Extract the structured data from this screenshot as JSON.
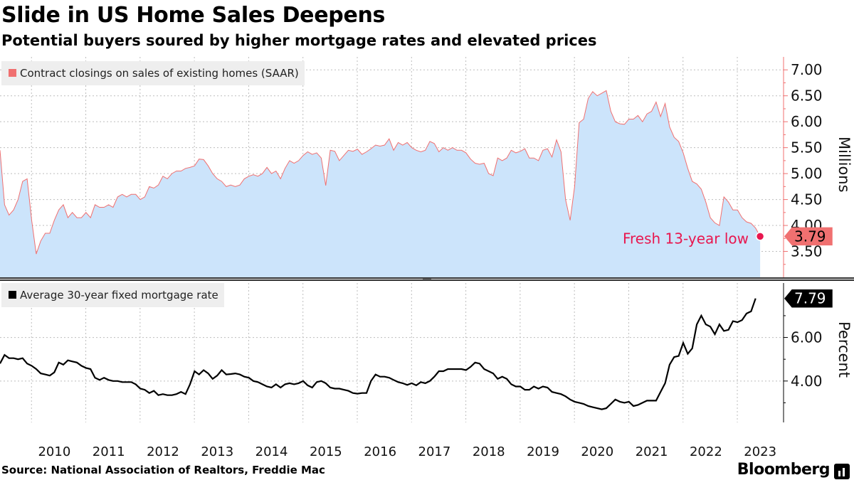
{
  "header": {
    "title": "Slide in US Home Sales Deepens",
    "subtitle": "Potential buyers soured by higher mortgage rates and elevated prices"
  },
  "footer": {
    "source": "Source: National Association of Realtors, Freddie Mac",
    "brand": "Bloomberg"
  },
  "chart_data": [
    {
      "type": "area",
      "series_name": "Contract closings on sales of existing homes (SAAR)",
      "unit": "Millions",
      "color_fill": "#cce4fb",
      "color_line": "#f07070",
      "ylim": [
        3.0,
        7.25
      ],
      "yticks": [
        3.5,
        4.0,
        4.5,
        5.0,
        5.5,
        6.0,
        6.5,
        7.0
      ],
      "ytick_labels": [
        "3.50",
        "4.00",
        "4.50",
        "5.00",
        "5.50",
        "6.00",
        "6.50",
        "7.00"
      ],
      "x_start": 2009.42,
      "x_step_months": 1,
      "values": [
        5.45,
        4.4,
        4.2,
        4.3,
        4.5,
        4.85,
        4.9,
        4.1,
        3.45,
        3.7,
        3.85,
        3.85,
        4.1,
        4.3,
        4.4,
        4.15,
        4.25,
        4.15,
        4.15,
        4.25,
        4.15,
        4.4,
        4.35,
        4.35,
        4.4,
        4.35,
        4.55,
        4.6,
        4.55,
        4.6,
        4.6,
        4.5,
        4.55,
        4.75,
        4.72,
        4.78,
        4.95,
        4.9,
        5.0,
        5.05,
        5.05,
        5.1,
        5.12,
        5.15,
        5.28,
        5.27,
        5.15,
        5.0,
        4.9,
        4.85,
        4.75,
        4.78,
        4.75,
        4.78,
        4.9,
        4.95,
        4.98,
        4.95,
        5.0,
        5.12,
        5.0,
        5.05,
        4.9,
        5.1,
        5.25,
        5.2,
        5.25,
        5.35,
        5.42,
        5.37,
        5.4,
        5.3,
        4.77,
        5.45,
        5.43,
        5.25,
        5.35,
        5.45,
        5.43,
        5.47,
        5.37,
        5.42,
        5.48,
        5.55,
        5.53,
        5.55,
        5.67,
        5.45,
        5.6,
        5.55,
        5.6,
        5.5,
        5.45,
        5.42,
        5.45,
        5.62,
        5.58,
        5.42,
        5.5,
        5.45,
        5.5,
        5.45,
        5.45,
        5.4,
        5.28,
        5.2,
        5.18,
        5.2,
        5.0,
        4.96,
        5.3,
        5.25,
        5.3,
        5.45,
        5.4,
        5.43,
        5.48,
        5.3,
        5.3,
        5.25,
        5.45,
        5.48,
        5.32,
        5.65,
        5.42,
        4.5,
        4.1,
        4.75,
        5.98,
        6.05,
        6.45,
        6.58,
        6.5,
        6.55,
        6.6,
        6.2,
        6.0,
        5.96,
        5.95,
        6.05,
        6.05,
        6.12,
        6.0,
        6.15,
        6.2,
        6.38,
        6.1,
        6.35,
        5.9,
        5.7,
        5.62,
        5.4,
        5.1,
        4.85,
        4.8,
        4.7,
        4.45,
        4.15,
        4.05,
        4.0,
        4.55,
        4.45,
        4.3,
        4.3,
        4.15,
        4.07,
        4.04,
        3.95,
        3.79
      ],
      "last_value_label": "3.79",
      "annotation": "Fresh 13-year low"
    },
    {
      "type": "line",
      "series_name": "Average 30-year fixed mortgage rate",
      "unit": "Percent",
      "color_line": "#000000",
      "ylim": [
        2.1,
        8.5
      ],
      "yticks": [
        4.0,
        6.0
      ],
      "ytick_labels": [
        "4.00",
        "6.00"
      ],
      "x_start": 2009.42,
      "x_step_months": 1,
      "values": [
        4.8,
        5.2,
        5.05,
        5.05,
        5.0,
        5.05,
        4.8,
        4.7,
        4.55,
        4.35,
        4.3,
        4.25,
        4.4,
        4.85,
        4.75,
        4.95,
        4.9,
        4.85,
        4.7,
        4.6,
        4.55,
        4.15,
        4.05,
        4.15,
        4.05,
        4.0,
        4.0,
        3.95,
        3.95,
        3.95,
        3.85,
        3.65,
        3.6,
        3.45,
        3.55,
        3.35,
        3.4,
        3.35,
        3.35,
        3.4,
        3.5,
        3.4,
        3.85,
        4.45,
        4.3,
        4.5,
        4.35,
        4.1,
        4.25,
        4.5,
        4.3,
        4.32,
        4.35,
        4.3,
        4.2,
        4.15,
        4.0,
        3.95,
        3.85,
        3.75,
        3.7,
        3.85,
        3.7,
        3.85,
        3.9,
        3.85,
        3.9,
        4.0,
        3.8,
        3.7,
        3.95,
        4.0,
        3.9,
        3.7,
        3.65,
        3.65,
        3.6,
        3.55,
        3.45,
        3.42,
        3.45,
        3.45,
        4.0,
        4.3,
        4.2,
        4.2,
        4.15,
        4.05,
        3.95,
        3.9,
        3.82,
        3.9,
        3.8,
        3.95,
        3.9,
        4.0,
        4.2,
        4.45,
        4.45,
        4.55,
        4.55,
        4.55,
        4.55,
        4.5,
        4.65,
        4.85,
        4.8,
        4.55,
        4.45,
        4.35,
        4.1,
        4.2,
        4.1,
        3.85,
        3.75,
        3.75,
        3.6,
        3.6,
        3.75,
        3.65,
        3.75,
        3.7,
        3.5,
        3.45,
        3.4,
        3.3,
        3.15,
        3.05,
        3.0,
        2.95,
        2.85,
        2.8,
        2.75,
        2.7,
        2.75,
        2.95,
        3.15,
        3.05,
        3.0,
        3.05,
        2.85,
        2.9,
        3.0,
        3.1,
        3.1,
        3.1,
        3.5,
        3.9,
        4.75,
        5.1,
        5.15,
        5.75,
        5.25,
        5.5,
        6.6,
        7.0,
        6.6,
        6.5,
        6.15,
        6.6,
        6.3,
        6.35,
        6.75,
        6.7,
        6.8,
        7.1,
        7.2,
        7.79
      ],
      "last_value_label": "7.79"
    }
  ],
  "x_axis": {
    "tick_labels": [
      "2010",
      "2011",
      "2012",
      "2013",
      "2014",
      "2015",
      "2016",
      "2017",
      "2018",
      "2019",
      "2020",
      "2021",
      "2022",
      "2023"
    ],
    "tick_years": [
      2010,
      2011,
      2012,
      2013,
      2014,
      2015,
      2016,
      2017,
      2018,
      2019,
      2020,
      2021,
      2022,
      2023
    ]
  }
}
